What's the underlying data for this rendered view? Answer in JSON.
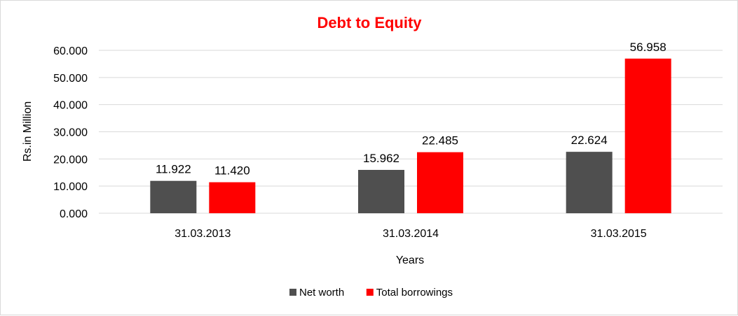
{
  "chart_data": {
    "type": "bar",
    "title": "Debt to Equity",
    "title_color": "#ff0000",
    "xlabel": "Years",
    "ylabel": "Rs.in Million",
    "categories": [
      "31.03.2013",
      "31.03.2014",
      "31.03.2015"
    ],
    "series": [
      {
        "name": "Net worth",
        "color": "#4f4f4f",
        "values": [
          11.922,
          15.962,
          22.624
        ],
        "value_labels": [
          "11.922",
          "15.962",
          "22.624"
        ]
      },
      {
        "name": "Total borrowings",
        "color": "#ff0000",
        "values": [
          11.42,
          22.485,
          56.958
        ],
        "value_labels": [
          "11.420",
          "22.485",
          "56.958"
        ]
      }
    ],
    "ylim": [
      0,
      60
    ],
    "yticks": [
      0,
      10,
      20,
      30,
      40,
      50,
      60
    ],
    "ytick_labels": [
      "0.000",
      "10.000",
      "20.000",
      "30.000",
      "40.000",
      "50.000",
      "60.000"
    ],
    "grid": true,
    "grid_color": "#d9d9d9",
    "legend_position": "bottom"
  }
}
